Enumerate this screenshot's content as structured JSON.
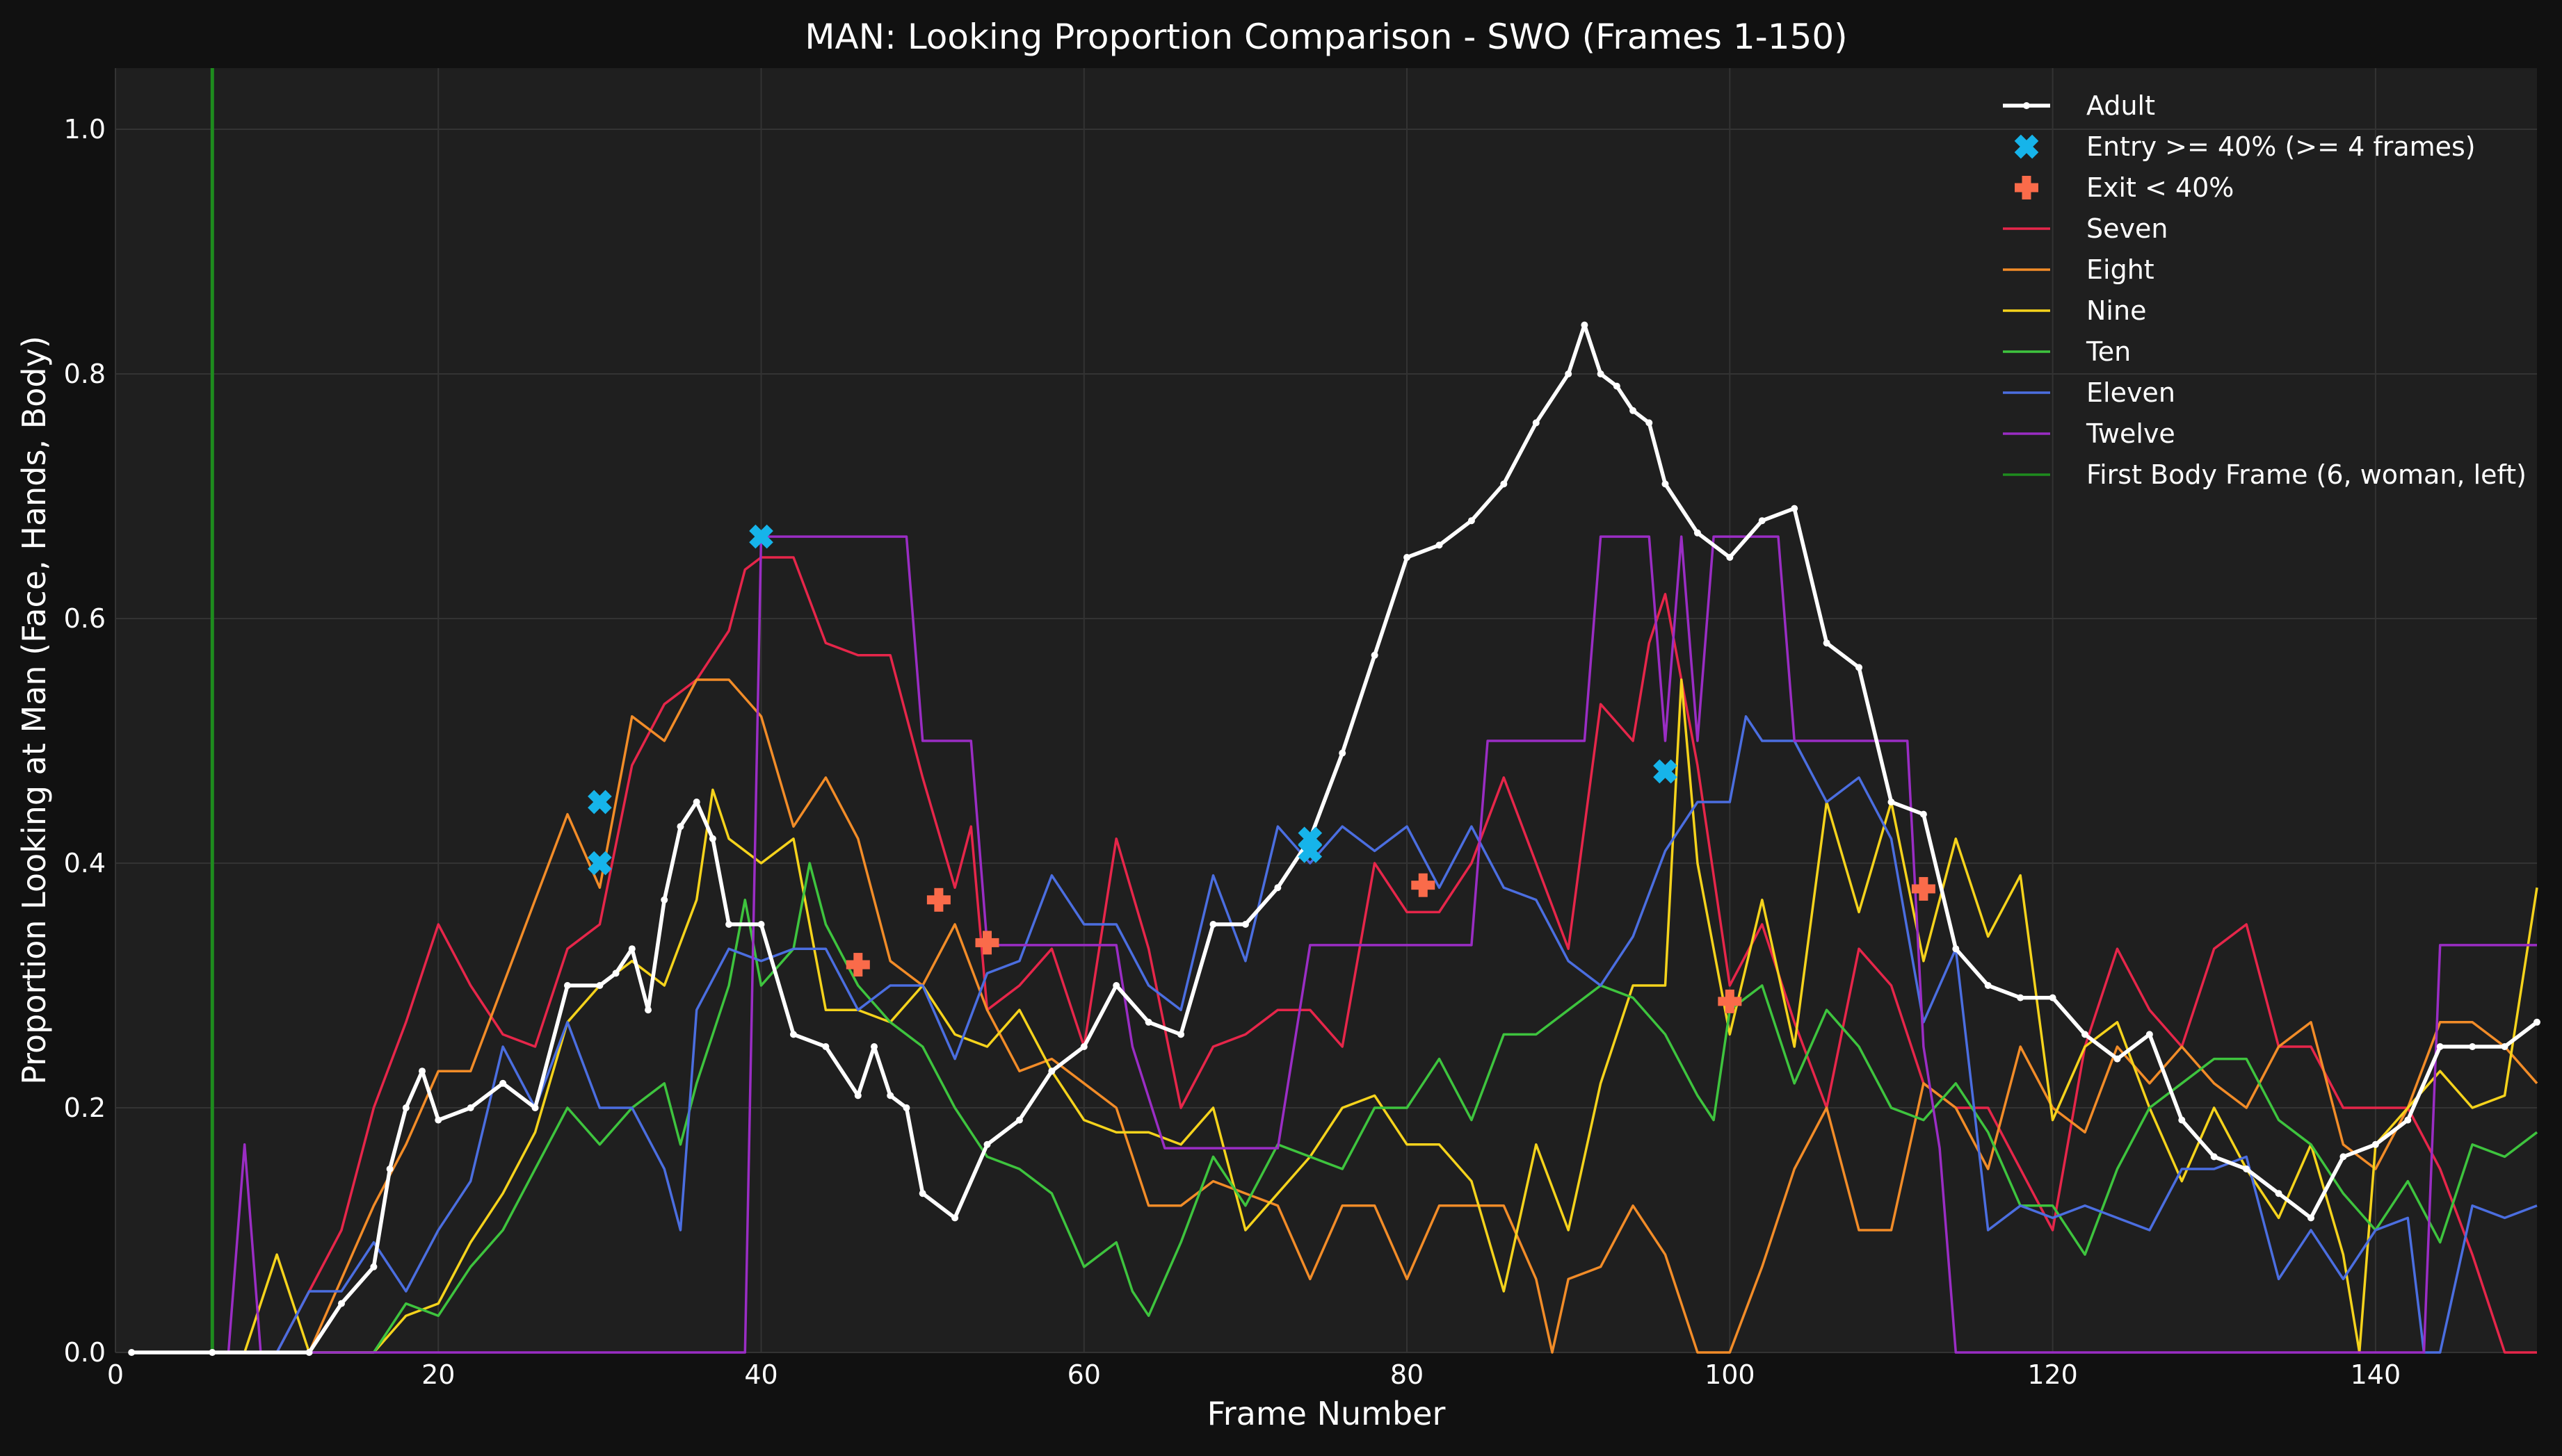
{
  "chart_data": {
    "type": "line",
    "title": "MAN: Looking Proportion Comparison - SWO (Frames 1-150)",
    "xlabel": "Frame Number",
    "ylabel": "Proportion Looking at Man (Face, Hands, Body)",
    "xlim": [
      0,
      150
    ],
    "ylim": [
      0,
      1.05
    ],
    "xticks": [
      0,
      20,
      40,
      60,
      80,
      100,
      120,
      140
    ],
    "yticks": [
      0.0,
      0.2,
      0.4,
      0.6,
      0.8,
      1.0
    ],
    "xtick_labels": [
      "0",
      "20",
      "40",
      "60",
      "80",
      "100",
      "120",
      "140"
    ],
    "ytick_labels": [
      "0.0",
      "0.2",
      "0.4",
      "0.6",
      "0.8",
      "1.0"
    ],
    "grid": true,
    "legend_position": "top-right",
    "vline": {
      "x": 6,
      "name": "First Body Frame (6, woman, left)",
      "color": "#1e8c1e"
    },
    "adult": {
      "name": "Adult",
      "color": "#ffffff",
      "x": [
        1,
        6,
        12,
        14,
        16,
        17,
        18,
        19,
        20,
        22,
        24,
        26,
        28,
        30,
        31,
        32,
        33,
        34,
        35,
        36,
        37,
        38,
        40,
        42,
        44,
        46,
        47,
        48,
        49,
        50,
        52,
        54,
        56,
        58,
        60,
        62,
        64,
        66,
        68,
        70,
        72,
        74,
        76,
        78,
        80,
        82,
        84,
        86,
        88,
        90,
        91,
        92,
        93,
        94,
        95,
        96,
        98,
        100,
        102,
        104,
        106,
        108,
        110,
        112,
        114,
        116,
        118,
        120,
        122,
        124,
        126,
        128,
        130,
        132,
        134,
        136,
        138,
        140,
        142,
        144,
        146,
        148,
        150
      ],
      "y": [
        0.0,
        0.0,
        0.0,
        0.04,
        0.07,
        0.15,
        0.2,
        0.23,
        0.19,
        0.2,
        0.22,
        0.2,
        0.3,
        0.3,
        0.31,
        0.33,
        0.28,
        0.37,
        0.43,
        0.45,
        0.42,
        0.35,
        0.35,
        0.26,
        0.25,
        0.21,
        0.25,
        0.21,
        0.2,
        0.13,
        0.11,
        0.17,
        0.19,
        0.23,
        0.25,
        0.3,
        0.27,
        0.26,
        0.35,
        0.35,
        0.38,
        0.42,
        0.49,
        0.57,
        0.65,
        0.66,
        0.68,
        0.71,
        0.76,
        0.8,
        0.84,
        0.8,
        0.79,
        0.77,
        0.76,
        0.71,
        0.67,
        0.65,
        0.68,
        0.69,
        0.58,
        0.56,
        0.45,
        0.44,
        0.33,
        0.3,
        0.29,
        0.29,
        0.26,
        0.24,
        0.26,
        0.19,
        0.16,
        0.15,
        0.13,
        0.11,
        0.16,
        0.17,
        0.19,
        0.25,
        0.25,
        0.25,
        0.27
      ]
    },
    "entry_markers": {
      "name": "Entry >= 40% (>= 4 frames)",
      "color": "#16b4ea",
      "points": [
        [
          30,
          0.45
        ],
        [
          30,
          0.4
        ],
        [
          40,
          0.667
        ],
        [
          74,
          0.42
        ],
        [
          74,
          0.41
        ],
        [
          96,
          0.475
        ]
      ]
    },
    "exit_markers": {
      "name": "Exit < 40%",
      "color": "#fa6b4a",
      "points": [
        [
          46,
          0.317
        ],
        [
          51,
          0.37
        ],
        [
          54,
          0.335
        ],
        [
          81,
          0.382
        ],
        [
          100,
          0.287
        ],
        [
          112,
          0.379
        ]
      ]
    },
    "series": [
      {
        "name": "Seven",
        "color": "#e6264a",
        "x": [
          1,
          10,
          12,
          14,
          16,
          18,
          20,
          22,
          24,
          26,
          28,
          30,
          32,
          34,
          36,
          38,
          39,
          40,
          42,
          44,
          46,
          48,
          50,
          52,
          53,
          54,
          56,
          58,
          60,
          62,
          64,
          66,
          68,
          70,
          72,
          74,
          76,
          78,
          80,
          82,
          84,
          86,
          88,
          90,
          92,
          94,
          95,
          96,
          98,
          100,
          102,
          104,
          106,
          108,
          110,
          112,
          114,
          116,
          118,
          120,
          122,
          124,
          126,
          128,
          130,
          132,
          134,
          136,
          138,
          140,
          142,
          144,
          146,
          148,
          150
        ],
        "y": [
          0.0,
          0.0,
          0.05,
          0.1,
          0.2,
          0.27,
          0.35,
          0.3,
          0.26,
          0.25,
          0.33,
          0.35,
          0.48,
          0.53,
          0.55,
          0.59,
          0.64,
          0.65,
          0.65,
          0.58,
          0.57,
          0.57,
          0.47,
          0.38,
          0.43,
          0.28,
          0.3,
          0.33,
          0.25,
          0.42,
          0.33,
          0.2,
          0.25,
          0.26,
          0.28,
          0.28,
          0.25,
          0.4,
          0.36,
          0.36,
          0.4,
          0.47,
          0.4,
          0.33,
          0.53,
          0.5,
          0.58,
          0.62,
          0.48,
          0.3,
          0.35,
          0.27,
          0.2,
          0.33,
          0.3,
          0.22,
          0.2,
          0.2,
          0.15,
          0.1,
          0.25,
          0.33,
          0.28,
          0.25,
          0.33,
          0.35,
          0.25,
          0.25,
          0.2,
          0.2,
          0.2,
          0.15,
          0.08,
          0.0,
          0.0
        ]
      },
      {
        "name": "Eight",
        "color": "#f28c28",
        "x": [
          1,
          12,
          14,
          16,
          18,
          20,
          22,
          24,
          26,
          28,
          30,
          32,
          34,
          36,
          38,
          40,
          42,
          44,
          46,
          48,
          50,
          52,
          54,
          56,
          58,
          60,
          62,
          64,
          66,
          68,
          70,
          72,
          74,
          76,
          78,
          80,
          82,
          84,
          86,
          88,
          89,
          90,
          92,
          94,
          96,
          98,
          100,
          102,
          104,
          106,
          108,
          110,
          112,
          114,
          116,
          118,
          120,
          122,
          124,
          126,
          128,
          130,
          132,
          134,
          136,
          138,
          140,
          142,
          144,
          146,
          148,
          150
        ],
        "y": [
          0.0,
          0.0,
          0.06,
          0.12,
          0.17,
          0.23,
          0.23,
          0.3,
          0.37,
          0.44,
          0.38,
          0.52,
          0.5,
          0.55,
          0.55,
          0.52,
          0.43,
          0.47,
          0.42,
          0.32,
          0.3,
          0.35,
          0.28,
          0.23,
          0.24,
          0.22,
          0.2,
          0.12,
          0.12,
          0.14,
          0.13,
          0.12,
          0.06,
          0.12,
          0.12,
          0.06,
          0.12,
          0.12,
          0.12,
          0.06,
          0.0,
          0.06,
          0.07,
          0.12,
          0.08,
          0.0,
          0.0,
          0.07,
          0.15,
          0.2,
          0.1,
          0.1,
          0.22,
          0.2,
          0.15,
          0.25,
          0.2,
          0.18,
          0.25,
          0.22,
          0.25,
          0.22,
          0.2,
          0.25,
          0.27,
          0.17,
          0.15,
          0.2,
          0.27,
          0.27,
          0.25,
          0.22
        ]
      },
      {
        "name": "Nine",
        "color": "#f5d31c",
        "x": [
          1,
          8,
          10,
          12,
          14,
          16,
          18,
          20,
          22,
          24,
          26,
          28,
          30,
          32,
          34,
          36,
          37,
          38,
          40,
          42,
          44,
          46,
          48,
          50,
          52,
          54,
          56,
          58,
          60,
          62,
          64,
          66,
          68,
          70,
          72,
          74,
          76,
          78,
          80,
          82,
          84,
          86,
          88,
          90,
          92,
          94,
          96,
          97,
          98,
          100,
          102,
          104,
          106,
          108,
          110,
          112,
          114,
          116,
          118,
          120,
          122,
          124,
          126,
          128,
          130,
          132,
          134,
          136,
          138,
          139,
          140,
          142,
          144,
          146,
          148,
          150
        ],
        "y": [
          0.0,
          0.0,
          0.08,
          0.0,
          0.0,
          0.0,
          0.03,
          0.04,
          0.09,
          0.13,
          0.18,
          0.27,
          0.3,
          0.32,
          0.3,
          0.37,
          0.46,
          0.42,
          0.4,
          0.42,
          0.28,
          0.28,
          0.27,
          0.3,
          0.26,
          0.25,
          0.28,
          0.23,
          0.19,
          0.18,
          0.18,
          0.17,
          0.2,
          0.1,
          0.13,
          0.16,
          0.2,
          0.21,
          0.17,
          0.17,
          0.14,
          0.05,
          0.17,
          0.1,
          0.22,
          0.3,
          0.3,
          0.55,
          0.4,
          0.26,
          0.37,
          0.25,
          0.45,
          0.36,
          0.45,
          0.32,
          0.42,
          0.34,
          0.39,
          0.19,
          0.25,
          0.27,
          0.2,
          0.14,
          0.2,
          0.15,
          0.11,
          0.17,
          0.08,
          0.0,
          0.17,
          0.2,
          0.23,
          0.2,
          0.21,
          0.38
        ]
      },
      {
        "name": "Ten",
        "color": "#3ec43e",
        "x": [
          1,
          16,
          18,
          20,
          22,
          24,
          26,
          28,
          30,
          32,
          34,
          35,
          36,
          38,
          39,
          40,
          42,
          43,
          44,
          46,
          48,
          50,
          52,
          54,
          56,
          58,
          60,
          62,
          63,
          64,
          66,
          68,
          70,
          72,
          74,
          76,
          78,
          80,
          82,
          84,
          86,
          88,
          90,
          92,
          94,
          96,
          98,
          99,
          100,
          102,
          104,
          106,
          108,
          110,
          112,
          114,
          116,
          118,
          120,
          122,
          124,
          126,
          128,
          130,
          132,
          134,
          136,
          138,
          140,
          142,
          144,
          146,
          148,
          150
        ],
        "y": [
          0.0,
          0.0,
          0.04,
          0.03,
          0.07,
          0.1,
          0.15,
          0.2,
          0.17,
          0.2,
          0.22,
          0.17,
          0.22,
          0.3,
          0.37,
          0.3,
          0.33,
          0.4,
          0.35,
          0.3,
          0.27,
          0.25,
          0.2,
          0.16,
          0.15,
          0.13,
          0.07,
          0.09,
          0.05,
          0.03,
          0.09,
          0.16,
          0.12,
          0.17,
          0.16,
          0.15,
          0.2,
          0.2,
          0.24,
          0.19,
          0.26,
          0.26,
          0.28,
          0.3,
          0.29,
          0.26,
          0.21,
          0.19,
          0.28,
          0.3,
          0.22,
          0.28,
          0.25,
          0.2,
          0.19,
          0.22,
          0.18,
          0.12,
          0.12,
          0.08,
          0.15,
          0.2,
          0.22,
          0.24,
          0.24,
          0.19,
          0.17,
          0.13,
          0.1,
          0.14,
          0.09,
          0.17,
          0.16,
          0.18
        ]
      },
      {
        "name": "Eleven",
        "color": "#4b6ee0",
        "x": [
          1,
          10,
          12,
          14,
          16,
          18,
          20,
          22,
          24,
          26,
          28,
          30,
          32,
          34,
          35,
          36,
          38,
          40,
          42,
          44,
          46,
          48,
          50,
          52,
          54,
          56,
          58,
          60,
          62,
          64,
          66,
          68,
          70,
          72,
          74,
          76,
          78,
          80,
          82,
          84,
          86,
          88,
          90,
          92,
          94,
          96,
          98,
          100,
          101,
          102,
          104,
          106,
          108,
          110,
          112,
          114,
          116,
          118,
          120,
          122,
          124,
          126,
          128,
          130,
          132,
          134,
          136,
          138,
          140,
          142,
          143,
          144,
          146,
          148,
          150
        ],
        "y": [
          0.0,
          0.0,
          0.05,
          0.05,
          0.09,
          0.05,
          0.1,
          0.14,
          0.25,
          0.2,
          0.27,
          0.2,
          0.2,
          0.15,
          0.1,
          0.28,
          0.33,
          0.32,
          0.33,
          0.33,
          0.28,
          0.3,
          0.3,
          0.24,
          0.31,
          0.32,
          0.39,
          0.35,
          0.35,
          0.3,
          0.28,
          0.39,
          0.32,
          0.43,
          0.4,
          0.43,
          0.41,
          0.43,
          0.38,
          0.43,
          0.38,
          0.37,
          0.32,
          0.3,
          0.34,
          0.41,
          0.45,
          0.45,
          0.52,
          0.5,
          0.5,
          0.45,
          0.47,
          0.42,
          0.27,
          0.33,
          0.1,
          0.12,
          0.11,
          0.12,
          0.11,
          0.1,
          0.15,
          0.15,
          0.16,
          0.06,
          0.1,
          0.06,
          0.1,
          0.11,
          0.0,
          0.0,
          0.12,
          0.11,
          0.12
        ]
      },
      {
        "name": "Twelve",
        "color": "#9a2dc4",
        "x": [
          1,
          7,
          8,
          9,
          39,
          40,
          41,
          49,
          50,
          53,
          54,
          62,
          63,
          65,
          66,
          72,
          73,
          74,
          75,
          84,
          85,
          91,
          92,
          95,
          96,
          97,
          98,
          99,
          100,
          103,
          104,
          105,
          111,
          112,
          113,
          114,
          143,
          144,
          150
        ],
        "y": [
          0.0,
          0.0,
          0.17,
          0.0,
          0.0,
          0.667,
          0.667,
          0.667,
          0.5,
          0.5,
          0.333,
          0.333,
          0.25,
          0.167,
          0.167,
          0.167,
          0.25,
          0.333,
          0.333,
          0.333,
          0.5,
          0.5,
          0.667,
          0.667,
          0.5,
          0.667,
          0.5,
          0.667,
          0.667,
          0.667,
          0.5,
          0.5,
          0.5,
          0.25,
          0.167,
          0.0,
          0.0,
          0.333,
          0.333
        ]
      }
    ]
  }
}
